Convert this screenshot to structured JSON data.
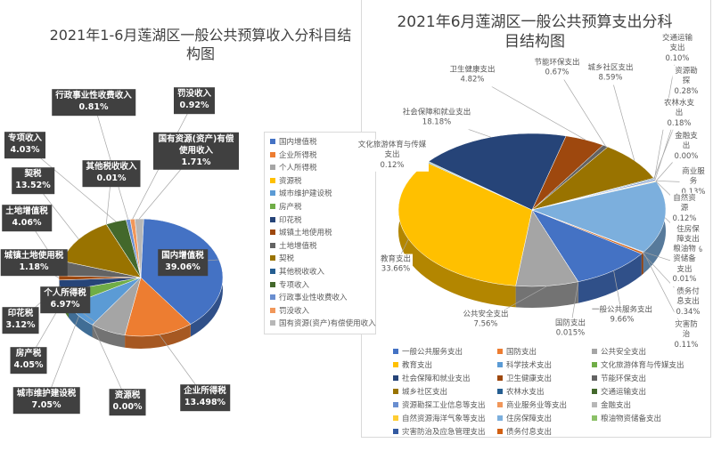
{
  "chart_data": [
    {
      "type": "pie",
      "title": "2021年1-6月莲湖区一般公共预算收入分科目结构图",
      "legend": "right",
      "categories": [
        "国内增值税",
        "企业所得税",
        "个人所得税",
        "资源税",
        "城市维护建设税",
        "房产税",
        "印花税",
        "城镇土地使用税",
        "土地增值税",
        "契税",
        "其他税收收入",
        "专项收入",
        "行政事业性收费收入",
        "罚没收入",
        "国有资源(资产)有偿使用收入"
      ],
      "values": [
        39.06,
        13.498,
        6.97,
        0,
        7.05,
        4.05,
        3.12,
        1.18,
        4.06,
        13.52,
        0.01,
        4.03,
        0.81,
        0.92,
        1.71
      ],
      "value_labels": [
        "39.06%",
        "13.498%",
        "6.97%",
        "0.00%",
        "7.05%",
        "4.05%",
        "3.12%",
        "1.18%",
        "4.06%",
        "13.52%",
        "0.01%",
        "4.03%",
        "0.81%",
        "0.92%",
        "1.71%"
      ],
      "colors": [
        "#4472c4",
        "#ed7d31",
        "#a5a5a5",
        "#ffc000",
        "#5b9bd5",
        "#70ad47",
        "#264478",
        "#9e480e",
        "#636363",
        "#997300",
        "#255e91",
        "#43682b",
        "#698ed0",
        "#f1975a",
        "#b7b7b7"
      ]
    },
    {
      "type": "pie",
      "title": "2021年6月莲湖区一般公共预算支出分科目结构图",
      "legend": "bottom",
      "categories": [
        "一般公共服务支出",
        "国防支出",
        "公共安全支出",
        "教育支出",
        "科学技术支出",
        "文化旅游体育与传媒支出",
        "社会保障和就业支出",
        "卫生健康支出",
        "节能环保支出",
        "城乡社区支出",
        "农林水支出",
        "交通运输支出",
        "资源勘探工业信息等支出",
        "商业服务业等支出",
        "金融支出",
        "自然资源海洋气象等支出",
        "住房保障支出",
        "粮油物资储备支出",
        "灾害防治及应急管理支出",
        "债务付息支出"
      ],
      "slice_labels": [
        "一般公共服务支出",
        "国防支出",
        "公共安全支出",
        "教育支出",
        null,
        "文化旅游体育与传媒支出",
        "社会保障和就业支出",
        "卫生健康支出",
        "节能环保支出",
        "城乡社区支出",
        "农林水支出",
        "交通运输支出",
        "资源勘探",
        "商业服务",
        "金融支出",
        "自然资源",
        "住房保障支出",
        "粮油物资储备支出",
        "灾害防治",
        "债务付息支出"
      ],
      "values": [
        9.66,
        0.015,
        7.56,
        33.66,
        0.18,
        0.12,
        18.18,
        4.82,
        0.67,
        8.59,
        0.18,
        0.1,
        0.28,
        0.13,
        0,
        0.12,
        15.28,
        0.01,
        0.11,
        0.34
      ],
      "value_labels": [
        "9.66%",
        "0.015%",
        "7.56%",
        "33.66%",
        null,
        "0.12%",
        "18.18%",
        "4.82%",
        "0.67%",
        "8.59%",
        "0.18%",
        "0.10%",
        "0.28%",
        "0.13%",
        "0.00%",
        "0.12%",
        "15.28%",
        "0.01%",
        "0.11%",
        "0.34%"
      ],
      "colors": [
        "#4472c4",
        "#ed7d31",
        "#a5a5a5",
        "#ffc000",
        "#5b9bd5",
        "#70ad47",
        "#264478",
        "#9e480e",
        "#636363",
        "#997300",
        "#255e91",
        "#43682b",
        "#698ed0",
        "#f1975a",
        "#b7b7b7",
        "#ffcd33",
        "#7cafdd",
        "#8cc168",
        "#335aa1",
        "#d26012"
      ]
    }
  ]
}
